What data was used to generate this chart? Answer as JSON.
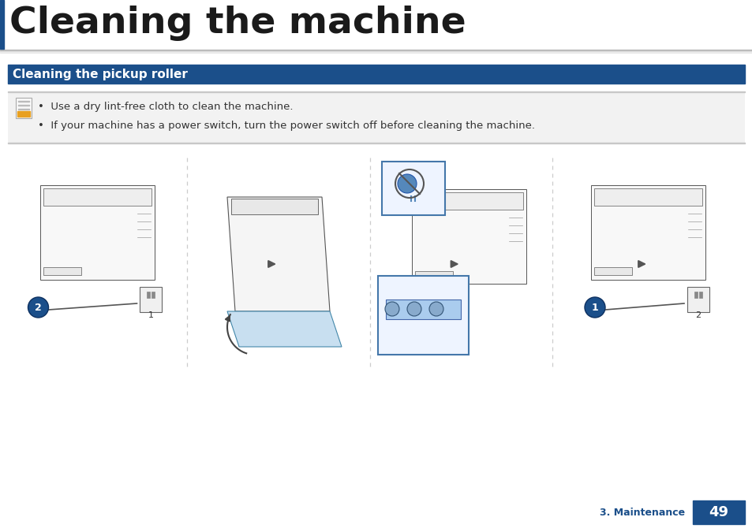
{
  "title": "Cleaning the machine",
  "section_title": "Cleaning the pickup roller",
  "note_line1": "Use a dry lint-free cloth to clean the machine.",
  "note_line2": "If your machine has a power switch, turn the power switch off before cleaning the machine.",
  "footer_text": "3. Maintenance",
  "page_number": "49",
  "bg_color": "#ffffff",
  "title_color": "#1a1a1a",
  "section_bg_color": "#1b4f8a",
  "section_text_color": "#ffffff",
  "footer_text_color": "#1b4f8a",
  "page_num_bg": "#1b4f8a",
  "page_num_color": "#ffffff",
  "title_bar_color": "#1b4f8a",
  "title_fontsize": 34,
  "section_fontsize": 11,
  "note_fontsize": 9.5,
  "footer_fontsize": 9,
  "page_num_fontsize": 13
}
